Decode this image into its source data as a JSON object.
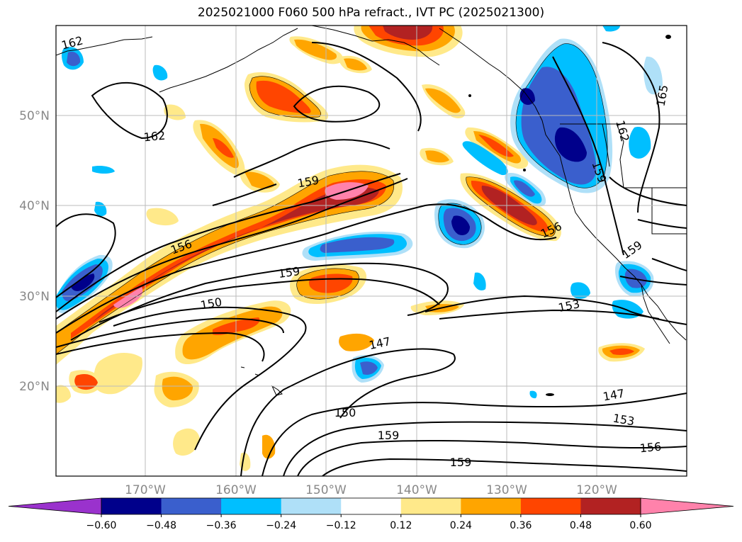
{
  "title": "2025021000 F060 500 hPa refract., IVT PC (2025021300)",
  "lat_ticks": [
    "50°N",
    "40°N",
    "30°N",
    "20°N"
  ],
  "lon_ticks": [
    "170°W",
    "160°W",
    "150°W",
    "140°W",
    "130°W",
    "120°W"
  ],
  "colorbar": {
    "colors": [
      "#9a32cd",
      "#00008b",
      "#3a5fcd",
      "#00bfff",
      "#afe0f8",
      "#ffffff",
      "#ffe98a",
      "#ffa500",
      "#ff4500",
      "#b22222",
      "#ff82ab"
    ],
    "labels": [
      "−0.60",
      "−0.48",
      "−0.36",
      "−0.24",
      "−0.12",
      "0.12",
      "0.24",
      "0.36",
      "0.48",
      "0.60"
    ]
  },
  "contour_labels": [
    "162",
    "162",
    "165",
    "162",
    "159",
    "159",
    "156",
    "156",
    "159",
    "159",
    "150",
    "153",
    "147",
    "147",
    "150",
    "153",
    "159",
    "156",
    "159"
  ]
}
